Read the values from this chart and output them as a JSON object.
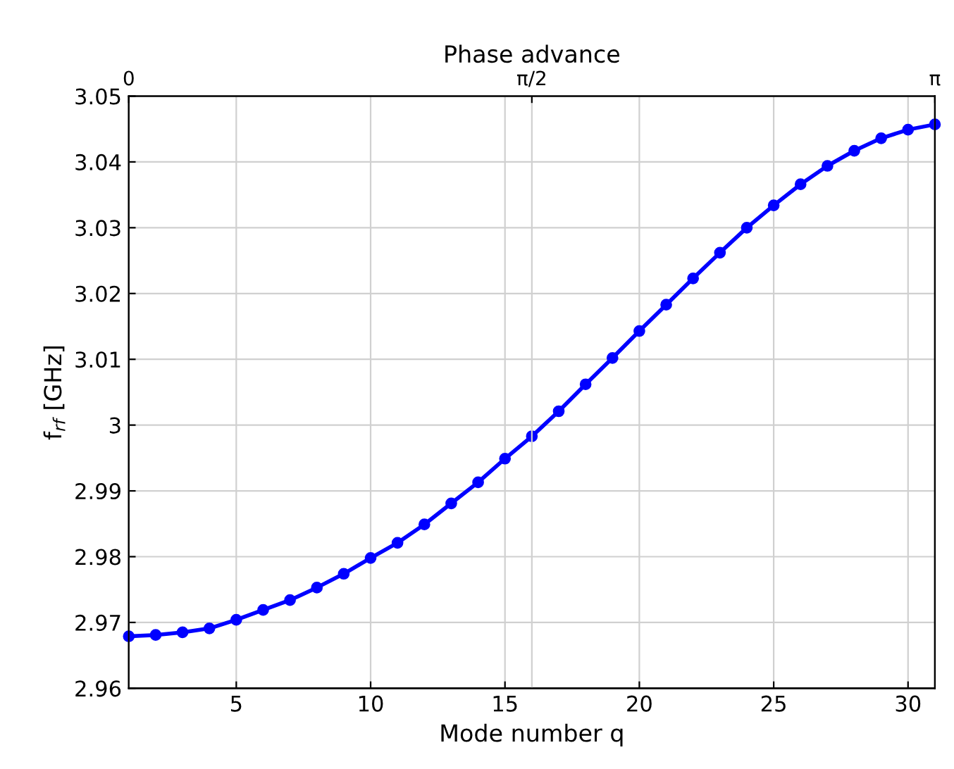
{
  "chart_data": {
    "type": "line",
    "xlabel": "Mode number q",
    "ylabel": "f$_{rf}$ [GHz]",
    "x2label": "Phase advance",
    "x": [
      1,
      2,
      3,
      4,
      5,
      6,
      7,
      8,
      9,
      10,
      11,
      12,
      13,
      14,
      15,
      16,
      17,
      18,
      19,
      20,
      21,
      22,
      23,
      24,
      25,
      26,
      27,
      28,
      29,
      30,
      31
    ],
    "series": [
      {
        "color": "#0000ff",
        "values": [
          2.9679,
          2.9681,
          2.9685,
          2.9691,
          2.9704,
          2.9719,
          2.9734,
          2.9753,
          2.9774,
          2.9798,
          2.9821,
          2.9849,
          2.9881,
          2.9913,
          2.9949,
          2.9983,
          3.0021,
          3.0062,
          3.0102,
          3.0143,
          3.0183,
          3.0223,
          3.0262,
          3.03,
          3.0334,
          3.0366,
          3.0394,
          3.0417,
          3.0436,
          3.0449,
          3.0457
        ]
      }
    ],
    "xlim": [
      1,
      31
    ],
    "xticks": [
      5,
      10,
      15,
      20,
      25,
      30
    ],
    "ylim": [
      2.96,
      3.05
    ],
    "yticks": [
      2.96,
      2.97,
      2.98,
      2.99,
      3,
      3.01,
      3.02,
      3.03,
      3.04,
      3.05
    ],
    "x2lim": [
      0,
      3.14159
    ],
    "x2ticks": [
      0,
      {
        "value": 1.5708,
        "label": "π/2"
      },
      {
        "value": 3.14159,
        "label": "π"
      }
    ],
    "grid": true,
    "marker": "circle",
    "line_style": "solid",
    "legend": false
  }
}
